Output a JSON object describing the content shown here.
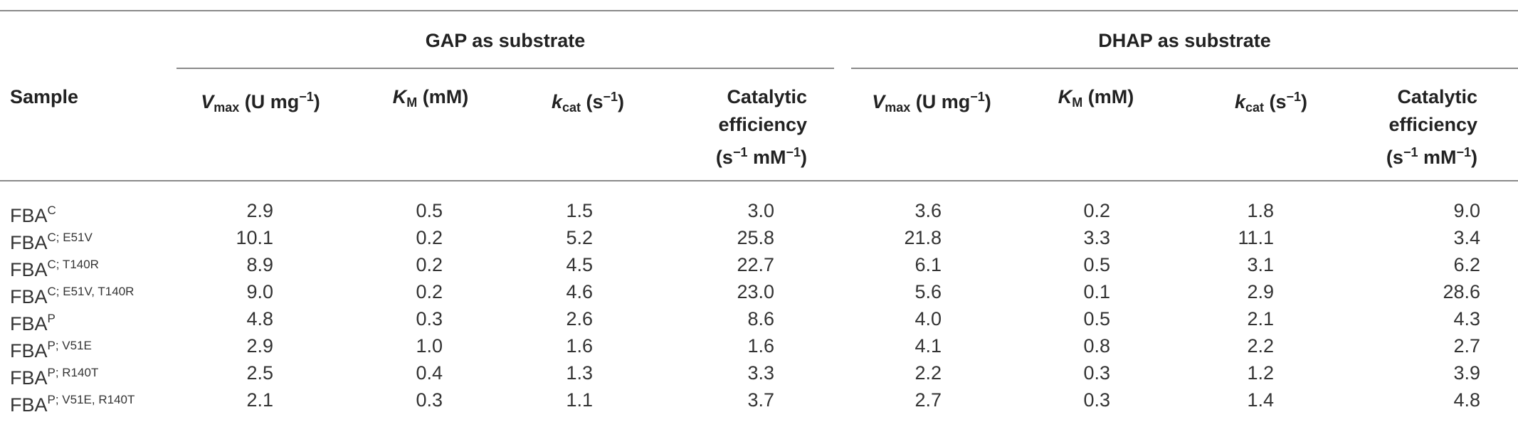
{
  "headers": {
    "sample": "Sample",
    "gap_group": "GAP as substrate",
    "dhap_group": "DHAP as substrate",
    "vmax": {
      "main": "V",
      "sub": "max",
      "unit": " (U mg",
      "sup": "−1",
      "close": ")"
    },
    "km": {
      "main": "K",
      "sub": "M",
      "unit": " (mM)"
    },
    "kcat": {
      "main": "k",
      "sub": "cat",
      "unit": " (s",
      "sup": "−1",
      "close": ")"
    },
    "eff": {
      "line1": "Catalytic",
      "line2": "efficiency",
      "line3a": "(s",
      "sup1": "−1",
      "line3b": " mM",
      "sup2": "−1",
      "line3c": ")"
    }
  },
  "rows": [
    {
      "base": "FBA",
      "sup": "C",
      "gap": [
        "2.9",
        "0.5",
        "1.5",
        "3.0"
      ],
      "dhap": [
        "3.6",
        "0.2",
        "1.8",
        "9.0"
      ]
    },
    {
      "base": "FBA",
      "sup": "C; E51V",
      "gap": [
        "10.1",
        "0.2",
        "5.2",
        "25.8"
      ],
      "dhap": [
        "21.8",
        "3.3",
        "11.1",
        "3.4"
      ]
    },
    {
      "base": "FBA",
      "sup": "C; T140R",
      "gap": [
        "8.9",
        "0.2",
        "4.5",
        "22.7"
      ],
      "dhap": [
        "6.1",
        "0.5",
        "3.1",
        "6.2"
      ]
    },
    {
      "base": "FBA",
      "sup": "C; E51V, T140R",
      "gap": [
        "9.0",
        "0.2",
        "4.6",
        "23.0"
      ],
      "dhap": [
        "5.6",
        "0.1",
        "2.9",
        "28.6"
      ]
    },
    {
      "base": "FBA",
      "sup": "P",
      "gap": [
        "4.8",
        "0.3",
        "2.6",
        "8.6"
      ],
      "dhap": [
        "4.0",
        "0.5",
        "2.1",
        "4.3"
      ]
    },
    {
      "base": "FBA",
      "sup": "P; V51E",
      "gap": [
        "2.9",
        "1.0",
        "1.6",
        "1.6"
      ],
      "dhap": [
        "4.1",
        "0.8",
        "2.2",
        "2.7"
      ]
    },
    {
      "base": "FBA",
      "sup": "P; R140T",
      "gap": [
        "2.5",
        "0.4",
        "1.3",
        "3.3"
      ],
      "dhap": [
        "2.2",
        "0.3",
        "1.2",
        "3.9"
      ]
    },
    {
      "base": "FBA",
      "sup": "P; V51E, R140T",
      "gap": [
        "2.1",
        "0.3",
        "1.1",
        "3.7"
      ],
      "dhap": [
        "2.7",
        "0.3",
        "1.4",
        "4.8"
      ]
    }
  ]
}
